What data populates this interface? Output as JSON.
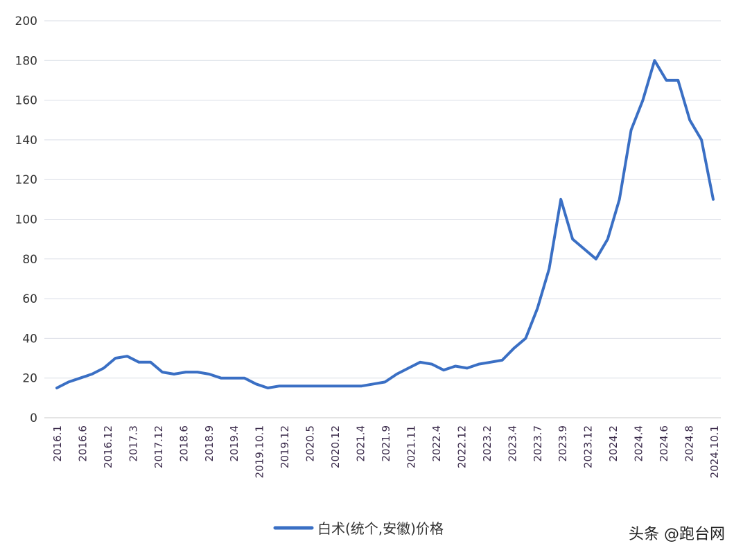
{
  "chart_data": {
    "type": "line",
    "title": "",
    "xlabel": "",
    "ylabel": "",
    "ylim": [
      0,
      200
    ],
    "yticks": [
      0,
      20,
      40,
      60,
      80,
      100,
      120,
      140,
      160,
      180,
      200
    ],
    "grid": true,
    "legend_position": "bottom",
    "x_tick_labels": [
      "2016.1",
      "2016.6",
      "2016.12",
      "2017.3",
      "2017.12",
      "2018.6",
      "2018.9",
      "2019.4",
      "2019.10.1",
      "2019.12",
      "2020.5",
      "2020.12",
      "2021.4",
      "2021.9",
      "2021.11",
      "2022.4",
      "2022.12",
      "2023.2",
      "2023.4",
      "2023.7",
      "2023.9",
      "2023.12",
      "2024.2",
      "2024.4",
      "2024.6",
      "2024.8",
      "2024.10.1"
    ],
    "series": [
      {
        "name": "白术(统个,安徽)价格",
        "color": "#3a6fc4",
        "values": [
          15,
          18,
          20,
          22,
          25,
          30,
          31,
          28,
          28,
          23,
          22,
          23,
          23,
          22,
          20,
          20,
          20,
          17,
          15,
          16,
          16,
          16,
          16,
          16,
          16,
          16,
          16,
          17,
          18,
          22,
          25,
          28,
          27,
          24,
          26,
          25,
          27,
          28,
          29,
          35,
          40,
          55,
          75,
          110,
          90,
          85,
          80,
          90,
          110,
          145,
          160,
          180,
          170,
          170,
          150,
          140,
          110
        ]
      }
    ]
  },
  "watermark": "头条 @跑台网"
}
